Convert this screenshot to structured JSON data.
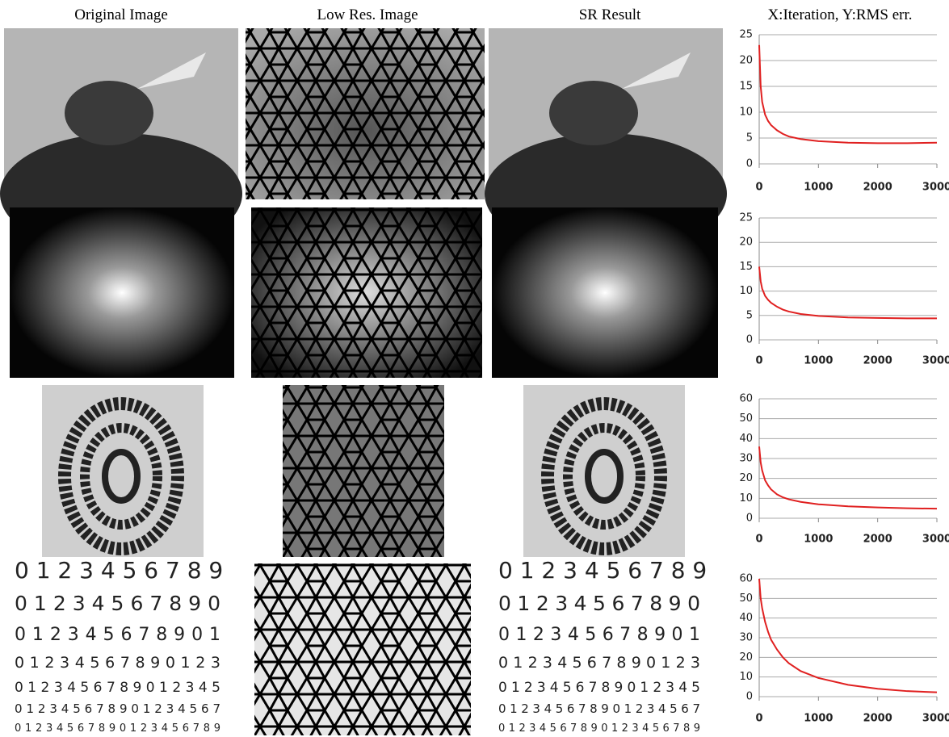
{
  "headers": [
    "Original Image",
    "Low Res. Image",
    "SR Result",
    "X:Iteration, Y:RMS err."
  ],
  "digits": {
    "original": [
      "0 1 2 3 4 5 6 7 8 9",
      "0 1 2 3 4 5 6 7 8 9 0",
      "0 1 2 3 4 5 6 7 8 9 0 1",
      "0 1 2 3 4 5 6 7 8 9 0 1 2 3",
      "0 1 2 3 4 5 6 7 8 9 0 1 2 3 4 5",
      "0 1 2 3 4 5 6 7 8 9 0 1 2 3 4 5 6 7",
      "0 1 2 3 4 5 6 7 8 9 0 1 2 3 4 5 6 7 8 9"
    ],
    "sr": [
      "0 1 2 3 4 5 6 7 8 9",
      "0 1 2 3 4 5 6 7 8 9 0",
      "0 1 2 3 4 5 6 7 8 9 0 1",
      "0 1 2 3 4 5 6 7 8 9 0 1 2 3",
      "0 1 2 3 4 5 6 7 8 9 0 1 2 3 4 5",
      "0 1 2 3 4 5 6 7 8 9 0 1 2 3 4 5 6 7",
      "0 1 2 3 4 5 6 7 8 9 0 1 2 3 4 5 6 7 8 9"
    ]
  },
  "chart_data": [
    {
      "type": "line",
      "color": "#e02020",
      "grid": true,
      "x": [
        0,
        25,
        50,
        100,
        150,
        200,
        300,
        400,
        500,
        700,
        1000,
        1500,
        2000,
        2500,
        3000
      ],
      "values": [
        23,
        15,
        12,
        9.5,
        8.3,
        7.5,
        6.5,
        5.8,
        5.3,
        4.8,
        4.4,
        4.1,
        4.0,
        4.0,
        4.1
      ],
      "xlim": [
        0,
        3000
      ],
      "xticks": [
        0,
        1000,
        2000,
        3000
      ],
      "ylim": [
        0,
        25
      ],
      "yticks": [
        0,
        5,
        10,
        15,
        20,
        25
      ]
    },
    {
      "type": "line",
      "color": "#e02020",
      "grid": true,
      "x": [
        0,
        25,
        50,
        100,
        150,
        200,
        300,
        400,
        500,
        700,
        1000,
        1500,
        2000,
        2500,
        3000
      ],
      "values": [
        15,
        12,
        10.5,
        9,
        8.2,
        7.6,
        6.8,
        6.2,
        5.8,
        5.3,
        4.9,
        4.6,
        4.5,
        4.4,
        4.4
      ],
      "xlim": [
        0,
        3000
      ],
      "xticks": [
        0,
        1000,
        2000,
        3000
      ],
      "ylim": [
        0,
        25
      ],
      "yticks": [
        0,
        5,
        10,
        15,
        20,
        25
      ]
    },
    {
      "type": "line",
      "color": "#e02020",
      "grid": true,
      "x": [
        0,
        25,
        50,
        100,
        150,
        200,
        300,
        400,
        500,
        700,
        1000,
        1500,
        2000,
        2500,
        3000
      ],
      "values": [
        36,
        28,
        24,
        19,
        16.5,
        14.5,
        12,
        10.5,
        9.5,
        8.2,
        7,
        6,
        5.4,
        5,
        4.8
      ],
      "xlim": [
        0,
        3000
      ],
      "xticks": [
        0,
        1000,
        2000,
        3000
      ],
      "ylim": [
        0,
        60
      ],
      "yticks": [
        0,
        10,
        20,
        30,
        40,
        50,
        60
      ]
    },
    {
      "type": "line",
      "color": "#e02020",
      "grid": true,
      "x": [
        0,
        25,
        50,
        100,
        150,
        200,
        300,
        400,
        500,
        700,
        1000,
        1500,
        2000,
        2500,
        3000
      ],
      "values": [
        60,
        50,
        45,
        38,
        33,
        29,
        24,
        20,
        17,
        13,
        9.5,
        6,
        4,
        2.8,
        2.2
      ],
      "xlim": [
        0,
        3000
      ],
      "xticks": [
        0,
        1000,
        2000,
        3000
      ],
      "ylim": [
        0,
        60
      ],
      "yticks": [
        0,
        10,
        20,
        30,
        40,
        50,
        60
      ]
    }
  ]
}
